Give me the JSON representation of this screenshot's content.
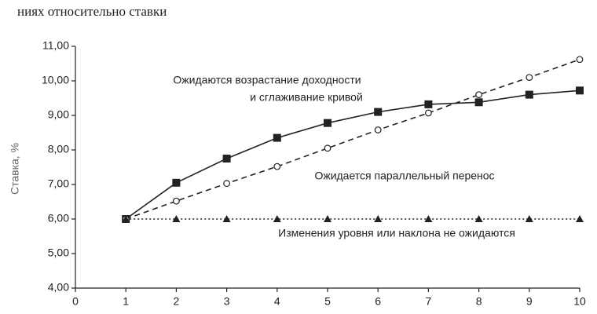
{
  "header_text": "ниях относительно ставки",
  "chart_data": {
    "type": "line",
    "ylabel": "Ставка, %",
    "x": [
      1,
      2,
      3,
      4,
      5,
      6,
      7,
      8,
      9,
      10
    ],
    "xlim": [
      0,
      10
    ],
    "xticks": [
      0,
      1,
      2,
      3,
      4,
      5,
      6,
      7,
      8,
      9,
      10
    ],
    "ylim": [
      4,
      11
    ],
    "yticks": [
      {
        "value": 4,
        "label": "4,00"
      },
      {
        "value": 5,
        "label": "5,00"
      },
      {
        "value": 6,
        "label": "6,00"
      },
      {
        "value": 7,
        "label": "7,00"
      },
      {
        "value": 8,
        "label": "8,00"
      },
      {
        "value": 9,
        "label": "9,00"
      },
      {
        "value": 10,
        "label": "10,00"
      },
      {
        "value": 11,
        "label": "11,00"
      }
    ],
    "series": [
      {
        "annotation": [
          "Ожидаются возрастание доходности",
          "и сглаживание кривой"
        ],
        "color": "#222222",
        "dash": "none",
        "marker": "square",
        "values": [
          6.0,
          7.05,
          7.75,
          8.35,
          8.78,
          9.1,
          9.32,
          9.38,
          9.6,
          9.72
        ]
      },
      {
        "annotation": [
          "Ожидается параллельный перенос"
        ],
        "color": "#222222",
        "dash": "7 5",
        "marker": "circle",
        "values": [
          6.0,
          6.52,
          7.03,
          7.52,
          8.05,
          8.58,
          9.07,
          9.6,
          10.1,
          10.62
        ]
      },
      {
        "annotation": [
          "Изменения уровня или наклона не ожидаются"
        ],
        "color": "#222222",
        "dash": "2 3",
        "marker": "triangle",
        "values": [
          6.0,
          6.0,
          6.0,
          6.0,
          6.0,
          6.0,
          6.0,
          6.0,
          6.0,
          6.0
        ]
      }
    ]
  }
}
